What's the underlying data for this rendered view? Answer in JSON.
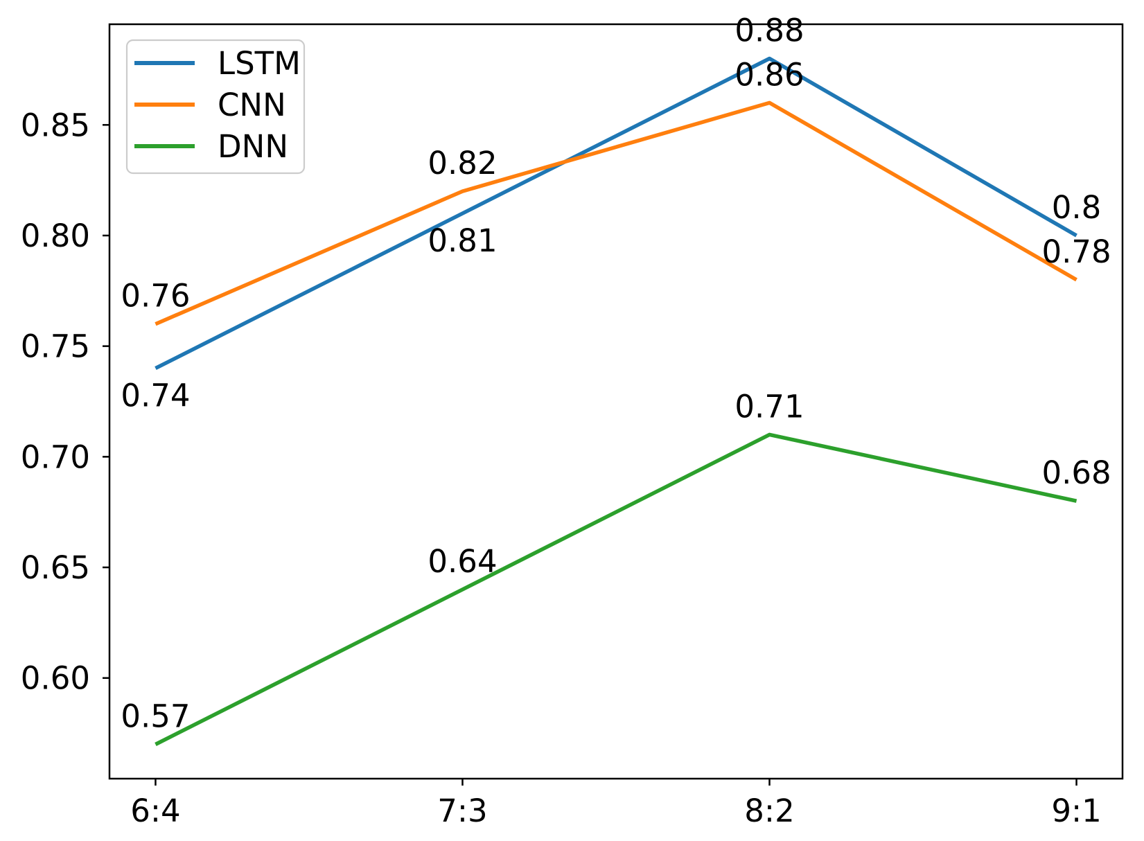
{
  "chart_data": {
    "type": "line",
    "categories": [
      "6:4",
      "7:3",
      "8:2",
      "9:1"
    ],
    "series": [
      {
        "name": "LSTM",
        "color": "#1f77b4",
        "values": [
          0.74,
          0.81,
          0.88,
          0.8
        ],
        "point_labels": [
          "0.74",
          "0.81",
          "0.88",
          "0.8"
        ],
        "label_placement": [
          "below",
          "below",
          "above",
          "above"
        ]
      },
      {
        "name": "CNN",
        "color": "#ff7f0e",
        "values": [
          0.76,
          0.82,
          0.86,
          0.78
        ],
        "point_labels": [
          "0.76",
          "0.82",
          "0.86",
          "0.78"
        ],
        "label_placement": [
          "above",
          "above",
          "above",
          "above"
        ]
      },
      {
        "name": "DNN",
        "color": "#2ca02c",
        "values": [
          0.57,
          0.64,
          0.71,
          0.68
        ],
        "point_labels": [
          "0.57",
          "0.64",
          "0.71",
          "0.68"
        ],
        "label_placement": [
          "above",
          "above",
          "above",
          "above"
        ]
      }
    ],
    "title": "",
    "xlabel": "",
    "ylabel": "",
    "ytick_values": [
      0.6,
      0.65,
      0.7,
      0.75,
      0.8,
      0.85
    ],
    "ytick_labels": [
      "0.60",
      "0.65",
      "0.70",
      "0.75",
      "0.80",
      "0.85"
    ],
    "ylim": [
      0.5545,
      0.8955
    ],
    "xlim": [
      -0.15,
      3.15
    ],
    "grid": false,
    "legend_position": "upper left",
    "axis_color": "#000000",
    "legend_border_color": "#cccccc",
    "background_color": "#ffffff"
  }
}
